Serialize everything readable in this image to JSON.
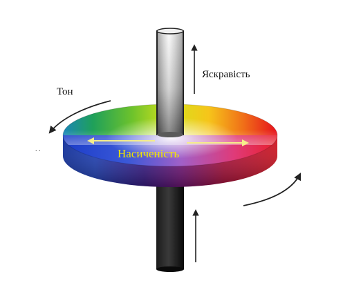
{
  "labels": {
    "brightness": "Яскравість",
    "hue": "Тон",
    "saturation": "Насиченість",
    "dots": ". ."
  },
  "colors": {
    "saturation_text": "#f2e600",
    "saturation_arrows": "#f6ee8a",
    "label_text": "#111111",
    "arrow_stroke": "#222222",
    "axis_dark": "#0d0d0d",
    "disc_side_left": "#1a2c8c",
    "disc_side_right": "#c00018"
  },
  "icons": {
    "hue_arrow": "curved-arrow-icon",
    "brightness_arrow": "up-arrow-icon"
  }
}
